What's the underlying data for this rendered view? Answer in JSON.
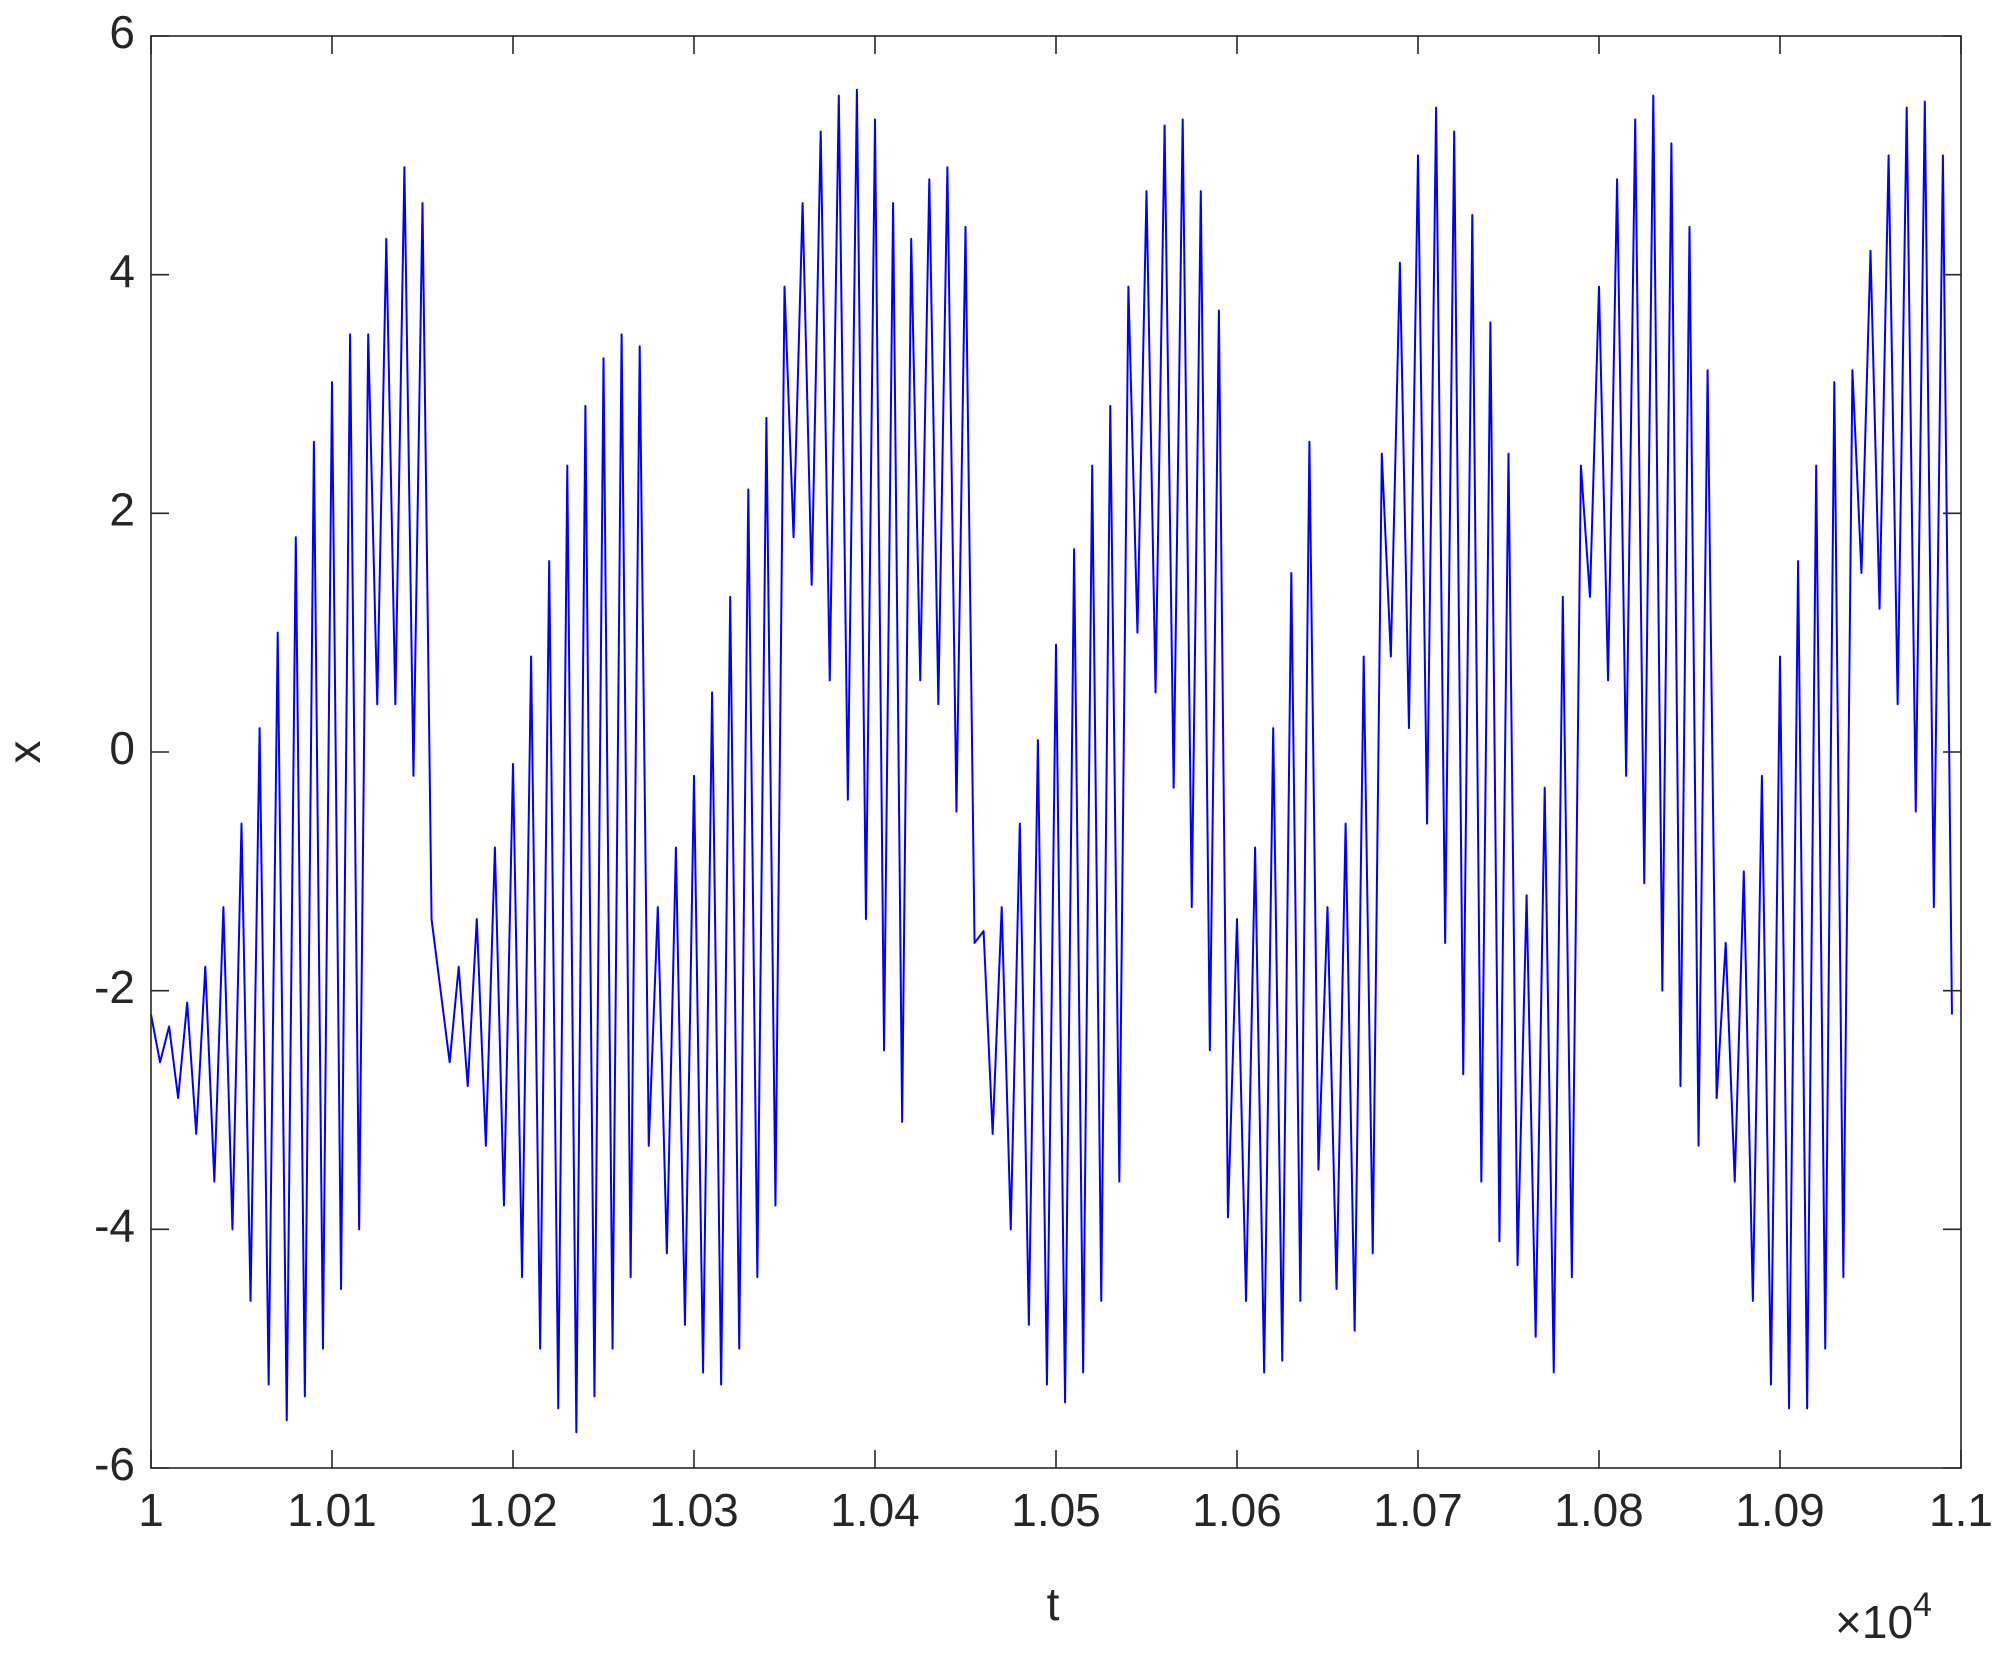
{
  "chart_data": {
    "type": "line",
    "xlabel": "t",
    "ylabel": "x",
    "x_multiplier": {
      "base": "×10",
      "exponent": "4"
    },
    "color": "#0000ff",
    "xlim": [
      1,
      1.1
    ],
    "xticks": [
      1,
      1.01,
      1.02,
      1.03,
      1.04,
      1.05,
      1.06,
      1.07,
      1.08,
      1.09,
      1.1
    ],
    "ylim": [
      -6,
      6
    ],
    "yticks": [
      -6,
      -4,
      -2,
      0,
      2,
      4,
      6
    ],
    "x": [
      1,
      1.0005,
      1.001,
      1.0015,
      1.002,
      1.0025,
      1.003,
      1.0035,
      1.004,
      1.0045,
      1.005,
      1.0055,
      1.006,
      1.0065,
      1.007,
      1.0075,
      1.008,
      1.0085,
      1.009,
      1.0095,
      1.01,
      1.0105,
      1.011,
      1.0115,
      1.012,
      1.0125,
      1.013,
      1.0135,
      1.014,
      1.0145,
      1.015,
      1.0155,
      1.016,
      1.0165,
      1.017,
      1.0175,
      1.018,
      1.0185,
      1.019,
      1.0195,
      1.02,
      1.0205,
      1.021,
      1.0215,
      1.022,
      1.0225,
      1.023,
      1.0235,
      1.024,
      1.0245,
      1.025,
      1.0255,
      1.026,
      1.0265,
      1.027,
      1.0275,
      1.028,
      1.0285,
      1.029,
      1.0295,
      1.03,
      1.0305,
      1.031,
      1.0315,
      1.032,
      1.0325,
      1.033,
      1.0335,
      1.034,
      1.0345,
      1.035,
      1.0355,
      1.036,
      1.0365,
      1.037,
      1.0375,
      1.038,
      1.0385,
      1.039,
      1.0395,
      1.04,
      1.0405,
      1.041,
      1.0415,
      1.042,
      1.0425,
      1.043,
      1.0435,
      1.044,
      1.0445,
      1.045,
      1.0455,
      1.046,
      1.0465,
      1.047,
      1.0475,
      1.048,
      1.0485,
      1.049,
      1.0495,
      1.05,
      1.0505,
      1.051,
      1.0515,
      1.052,
      1.0525,
      1.053,
      1.0535,
      1.054,
      1.0545,
      1.055,
      1.0555,
      1.056,
      1.0565,
      1.057,
      1.0575,
      1.058,
      1.0585,
      1.059,
      1.0595,
      1.06,
      1.0605,
      1.061,
      1.0615,
      1.062,
      1.0625,
      1.063,
      1.0635,
      1.064,
      1.0645,
      1.065,
      1.0655,
      1.066,
      1.0665,
      1.067,
      1.0675,
      1.068,
      1.0685,
      1.069,
      1.0695,
      1.07,
      1.0705,
      1.071,
      1.0715,
      1.072,
      1.0725,
      1.073,
      1.0735,
      1.074,
      1.0745,
      1.075,
      1.0755,
      1.076,
      1.0765,
      1.077,
      1.0775,
      1.078,
      1.0785,
      1.079,
      1.0795,
      1.08,
      1.0805,
      1.081,
      1.0815,
      1.082,
      1.0825,
      1.083,
      1.0835,
      1.084,
      1.0845,
      1.085,
      1.0855,
      1.086,
      1.0865,
      1.087,
      1.0875,
      1.088,
      1.0885,
      1.089,
      1.0895,
      1.09,
      1.0905,
      1.091,
      1.0915,
      1.092,
      1.0925,
      1.093,
      1.0935,
      1.094,
      1.0945,
      1.095,
      1.0955,
      1.096,
      1.0965,
      1.097,
      1.0975,
      1.098,
      1.0985,
      1.099,
      1.0995
    ],
    "values": [
      -2.2,
      -2.6,
      -2.3,
      -2.9,
      -2.1,
      -3.2,
      -1.8,
      -3.6,
      -1.3,
      -4.0,
      -0.6,
      -4.6,
      0.2,
      -5.3,
      1.0,
      -5.6,
      1.8,
      -5.4,
      2.6,
      -5.0,
      3.1,
      -4.5,
      3.5,
      -4.0,
      3.5,
      0.4,
      4.3,
      0.4,
      4.9,
      -0.2,
      4.6,
      -1.4,
      -2.0,
      -2.6,
      -1.8,
      -2.8,
      -1.4,
      -3.3,
      -0.8,
      -3.8,
      -0.1,
      -4.4,
      0.8,
      -5.0,
      1.6,
      -5.5,
      2.4,
      -5.7,
      2.9,
      -5.4,
      3.3,
      -5.0,
      3.5,
      -4.4,
      3.4,
      -3.3,
      -1.3,
      -4.2,
      -0.8,
      -4.8,
      -0.2,
      -5.2,
      0.5,
      -5.3,
      1.3,
      -5.0,
      2.2,
      -4.4,
      2.8,
      -3.8,
      3.9,
      1.8,
      4.6,
      1.4,
      5.2,
      0.6,
      5.5,
      -0.4,
      5.55,
      -1.4,
      5.3,
      -2.5,
      4.6,
      -3.1,
      4.3,
      0.6,
      4.8,
      0.4,
      4.9,
      -0.5,
      4.4,
      -1.6,
      -1.5,
      -3.2,
      -1.3,
      -4.0,
      -0.6,
      -4.8,
      0.1,
      -5.3,
      0.9,
      -5.45,
      1.7,
      -5.2,
      2.4,
      -4.6,
      2.9,
      -3.6,
      3.9,
      1.0,
      4.7,
      0.5,
      5.25,
      -0.3,
      5.3,
      -1.3,
      4.7,
      -2.5,
      3.7,
      -3.9,
      -1.4,
      -4.6,
      -0.8,
      -5.2,
      0.2,
      -5.1,
      1.5,
      -4.6,
      2.6,
      -3.5,
      -1.3,
      -4.5,
      -0.6,
      -4.85,
      0.8,
      -4.2,
      2.5,
      0.8,
      4.1,
      0.2,
      5.0,
      -0.6,
      5.4,
      -1.6,
      5.2,
      -2.7,
      4.5,
      -3.6,
      3.6,
      -4.1,
      2.5,
      -4.3,
      -1.2,
      -4.9,
      -0.3,
      -5.2,
      1.3,
      -4.4,
      2.4,
      1.3,
      3.9,
      0.6,
      4.8,
      -0.2,
      5.3,
      -1.1,
      5.5,
      -2.0,
      5.1,
      -2.8,
      4.4,
      -3.3,
      3.2,
      -2.9,
      -1.6,
      -3.6,
      -1.0,
      -4.6,
      -0.2,
      -5.3,
      0.8,
      -5.5,
      1.6,
      -5.5,
      2.4,
      -5.0,
      3.1,
      -4.4,
      3.2,
      1.5,
      4.2,
      1.2,
      5.0,
      0.4,
      5.4,
      -0.5,
      5.45,
      -1.3,
      5.0,
      -2.2
    ]
  }
}
